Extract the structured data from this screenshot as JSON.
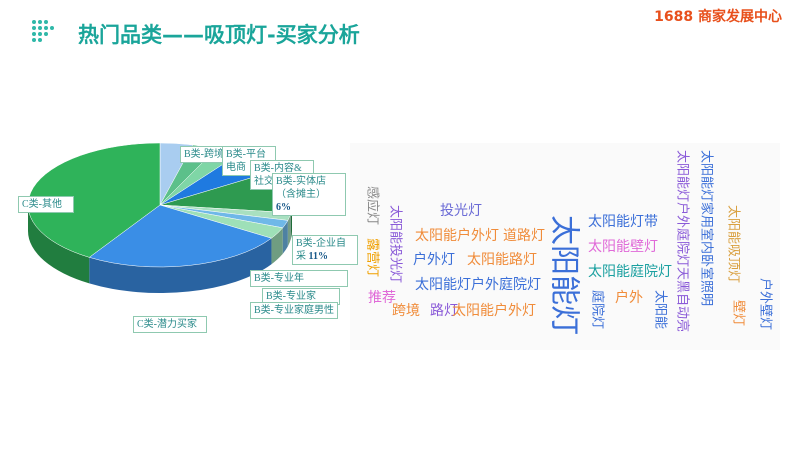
{
  "header": {
    "title": "热门品类——吸顶灯-买家分析",
    "brand": "1688 商家发展中心"
  },
  "chart_data": {
    "type": "pie",
    "categories": [
      "B类-跨境",
      "B类-平台电商",
      "B类-内容&社交",
      "B类-实体店（含摊主）",
      "B类-企业自采",
      "B类-专业年",
      "B类-专业家",
      "B类-专业家庭男性",
      "C类-潜力买家",
      "C类-其他"
    ],
    "values": [
      4,
      3,
      3,
      6,
      11,
      2,
      2,
      3,
      25,
      41
    ],
    "value_labels": [
      null,
      null,
      null,
      "6%",
      "11%",
      null,
      null,
      null,
      null,
      null
    ],
    "colors": [
      "#a9cdf0",
      "#5cc08a",
      "#7fd6a6",
      "#1f7ae0",
      "#2e9a50",
      "#a8e0c0",
      "#6fb8e8",
      "#9ee0b8",
      "#3a8ee6",
      "#2fb35a"
    ]
  },
  "word_cloud": {
    "words": [
      {
        "text": "投光灯",
        "color": "#6b6bd6"
      },
      {
        "text": "太阳能户外灯",
        "color": "#f08c3a"
      },
      {
        "text": "道路灯",
        "color": "#f08c3a"
      },
      {
        "text": "太阳能灯带",
        "color": "#3b6fd8"
      },
      {
        "text": "户外灯",
        "color": "#3b6fd8"
      },
      {
        "text": "太阳能路灯",
        "color": "#f08c3a"
      },
      {
        "text": "太阳能壁灯",
        "color": "#e06ad8"
      },
      {
        "text": "太阳能灯户外庭院灯",
        "color": "#3b6fd8"
      },
      {
        "text": "太阳能庭院灯",
        "color": "#1aa0a0"
      },
      {
        "text": "户外",
        "color": "#f08c3a"
      },
      {
        "text": "推荐",
        "color": "#e06ad8"
      },
      {
        "text": "跨境",
        "color": "#f08c3a"
      },
      {
        "text": "路灯",
        "color": "#8a5ad8"
      },
      {
        "text": "太阳能户外灯",
        "color": "#f08c3a"
      },
      {
        "text": "感应灯",
        "color": "#888888"
      },
      {
        "text": "太阳能投光灯",
        "color": "#8a5ad8"
      },
      {
        "text": "露营灯",
        "color": "#f0a000"
      },
      {
        "text": "太阳能灯",
        "color": "#3b6fd8"
      },
      {
        "text": "庭院灯",
        "color": "#3b6fd8"
      },
      {
        "text": "太阳能",
        "color": "#3b6fd8"
      },
      {
        "text": "太阳能灯户外庭院灯天黑自动亮",
        "color": "#8a5ad8"
      },
      {
        "text": "太阳能灯家用室内卧室照明",
        "color": "#3b6fd8"
      },
      {
        "text": "太阳能吸顶灯",
        "color": "#d9a040"
      },
      {
        "text": "壁灯",
        "color": "#f08c3a"
      },
      {
        "text": "户外壁灯",
        "color": "#3b6fd8"
      }
    ]
  }
}
